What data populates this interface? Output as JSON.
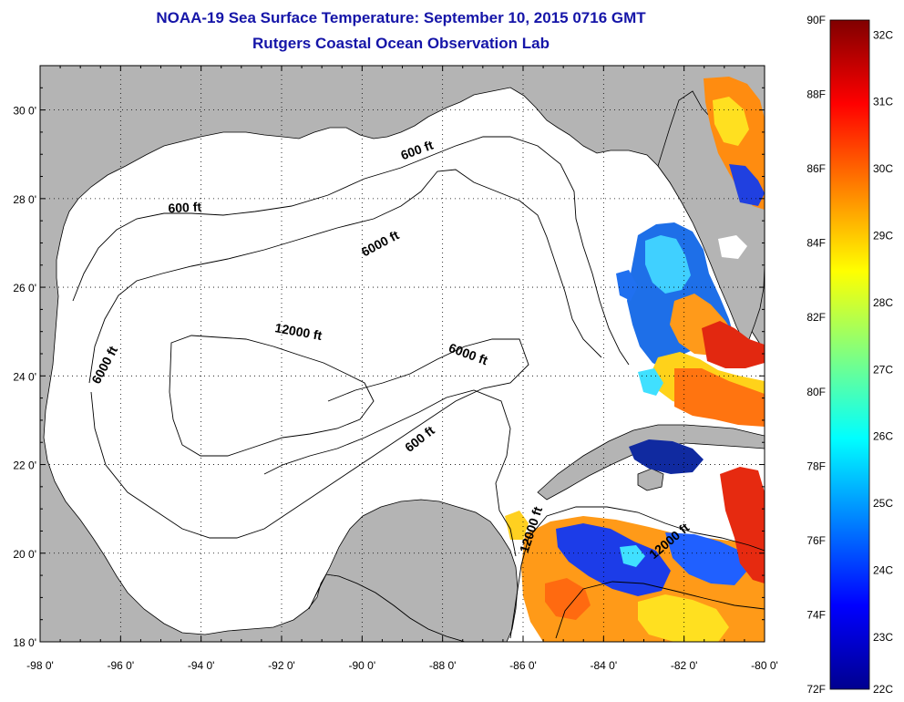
{
  "title": {
    "line1": "NOAA-19 Sea Surface Temperature:  September 10, 2015 0716 GMT",
    "line2": "Rutgers Coastal Ocean Observation Lab"
  },
  "map": {
    "lon_range": [
      -98,
      -80
    ],
    "lat_range": [
      18,
      31
    ],
    "x_ticks": [
      {
        "lon": -98,
        "label": "-98 0'"
      },
      {
        "lon": -96,
        "label": "-96 0'"
      },
      {
        "lon": -94,
        "label": "-94 0'"
      },
      {
        "lon": -92,
        "label": "-92 0'"
      },
      {
        "lon": -90,
        "label": "-90 0'"
      },
      {
        "lon": -88,
        "label": "-88 0'"
      },
      {
        "lon": -86,
        "label": "-86 0'"
      },
      {
        "lon": -84,
        "label": "-84 0'"
      },
      {
        "lon": -82,
        "label": "-82 0'"
      },
      {
        "lon": -80,
        "label": "-80 0'"
      }
    ],
    "y_ticks": [
      {
        "lat": 30,
        "label": "30 0'"
      },
      {
        "lat": 28,
        "label": "28 0'"
      },
      {
        "lat": 26,
        "label": "26 0'"
      },
      {
        "lat": 24,
        "label": "24 0'"
      },
      {
        "lat": 22,
        "label": "22 0'"
      },
      {
        "lat": 20,
        "label": "20 0'"
      },
      {
        "lat": 18,
        "label": "18 0'"
      }
    ],
    "land_color": "#b4b4b4",
    "water_color": "#ffffff",
    "contour_labels": [
      {
        "text": "600 ft",
        "lon": -88.6,
        "lat": 29.0,
        "angle": -20
      },
      {
        "text": "600 ft",
        "lon": -94.4,
        "lat": 27.7,
        "angle": -3
      },
      {
        "text": "6000 ft",
        "lon": -89.5,
        "lat": 26.9,
        "angle": -28
      },
      {
        "text": "6000 ft",
        "lon": -96.3,
        "lat": 24.2,
        "angle": -62
      },
      {
        "text": "12000 ft",
        "lon": -91.6,
        "lat": 24.9,
        "angle": 10
      },
      {
        "text": "6000 ft",
        "lon": -87.4,
        "lat": 24.4,
        "angle": 20
      },
      {
        "text": "600 ft",
        "lon": -88.5,
        "lat": 22.5,
        "angle": -38
      },
      {
        "text": "12000 ft",
        "lon": -85.7,
        "lat": 20.5,
        "angle": -72
      },
      {
        "text": "12000 ft",
        "lon": -82.3,
        "lat": 20.2,
        "angle": -40
      }
    ]
  },
  "colorbar": {
    "colors": [
      "#00008f",
      "#0000ff",
      "#0080ff",
      "#00ffff",
      "#80ff80",
      "#ffff00",
      "#ff8000",
      "#ff0000",
      "#800000"
    ],
    "fahrenheit_labels": [
      {
        "value": 90,
        "label": "90F"
      },
      {
        "value": 88,
        "label": "88F"
      },
      {
        "value": 86,
        "label": "86F"
      },
      {
        "value": 84,
        "label": "84F"
      },
      {
        "value": 82,
        "label": "82F"
      },
      {
        "value": 80,
        "label": "80F"
      },
      {
        "value": 78,
        "label": "78F"
      },
      {
        "value": 76,
        "label": "76F"
      },
      {
        "value": 74,
        "label": "74F"
      },
      {
        "value": 72,
        "label": "72F"
      }
    ],
    "celsius_labels": [
      {
        "value": 32,
        "label": "32C"
      },
      {
        "value": 31,
        "label": "31C"
      },
      {
        "value": 30,
        "label": "30C"
      },
      {
        "value": 29,
        "label": "29C"
      },
      {
        "value": 28,
        "label": "28C"
      },
      {
        "value": 27,
        "label": "27C"
      },
      {
        "value": 26,
        "label": "26C"
      },
      {
        "value": 25,
        "label": "25C"
      },
      {
        "value": 24,
        "label": "24C"
      },
      {
        "value": 23,
        "label": "23C"
      },
      {
        "value": 22,
        "label": "22C"
      }
    ],
    "f_range": [
      72,
      90
    ],
    "c_range": [
      22.222,
      32.222
    ]
  }
}
